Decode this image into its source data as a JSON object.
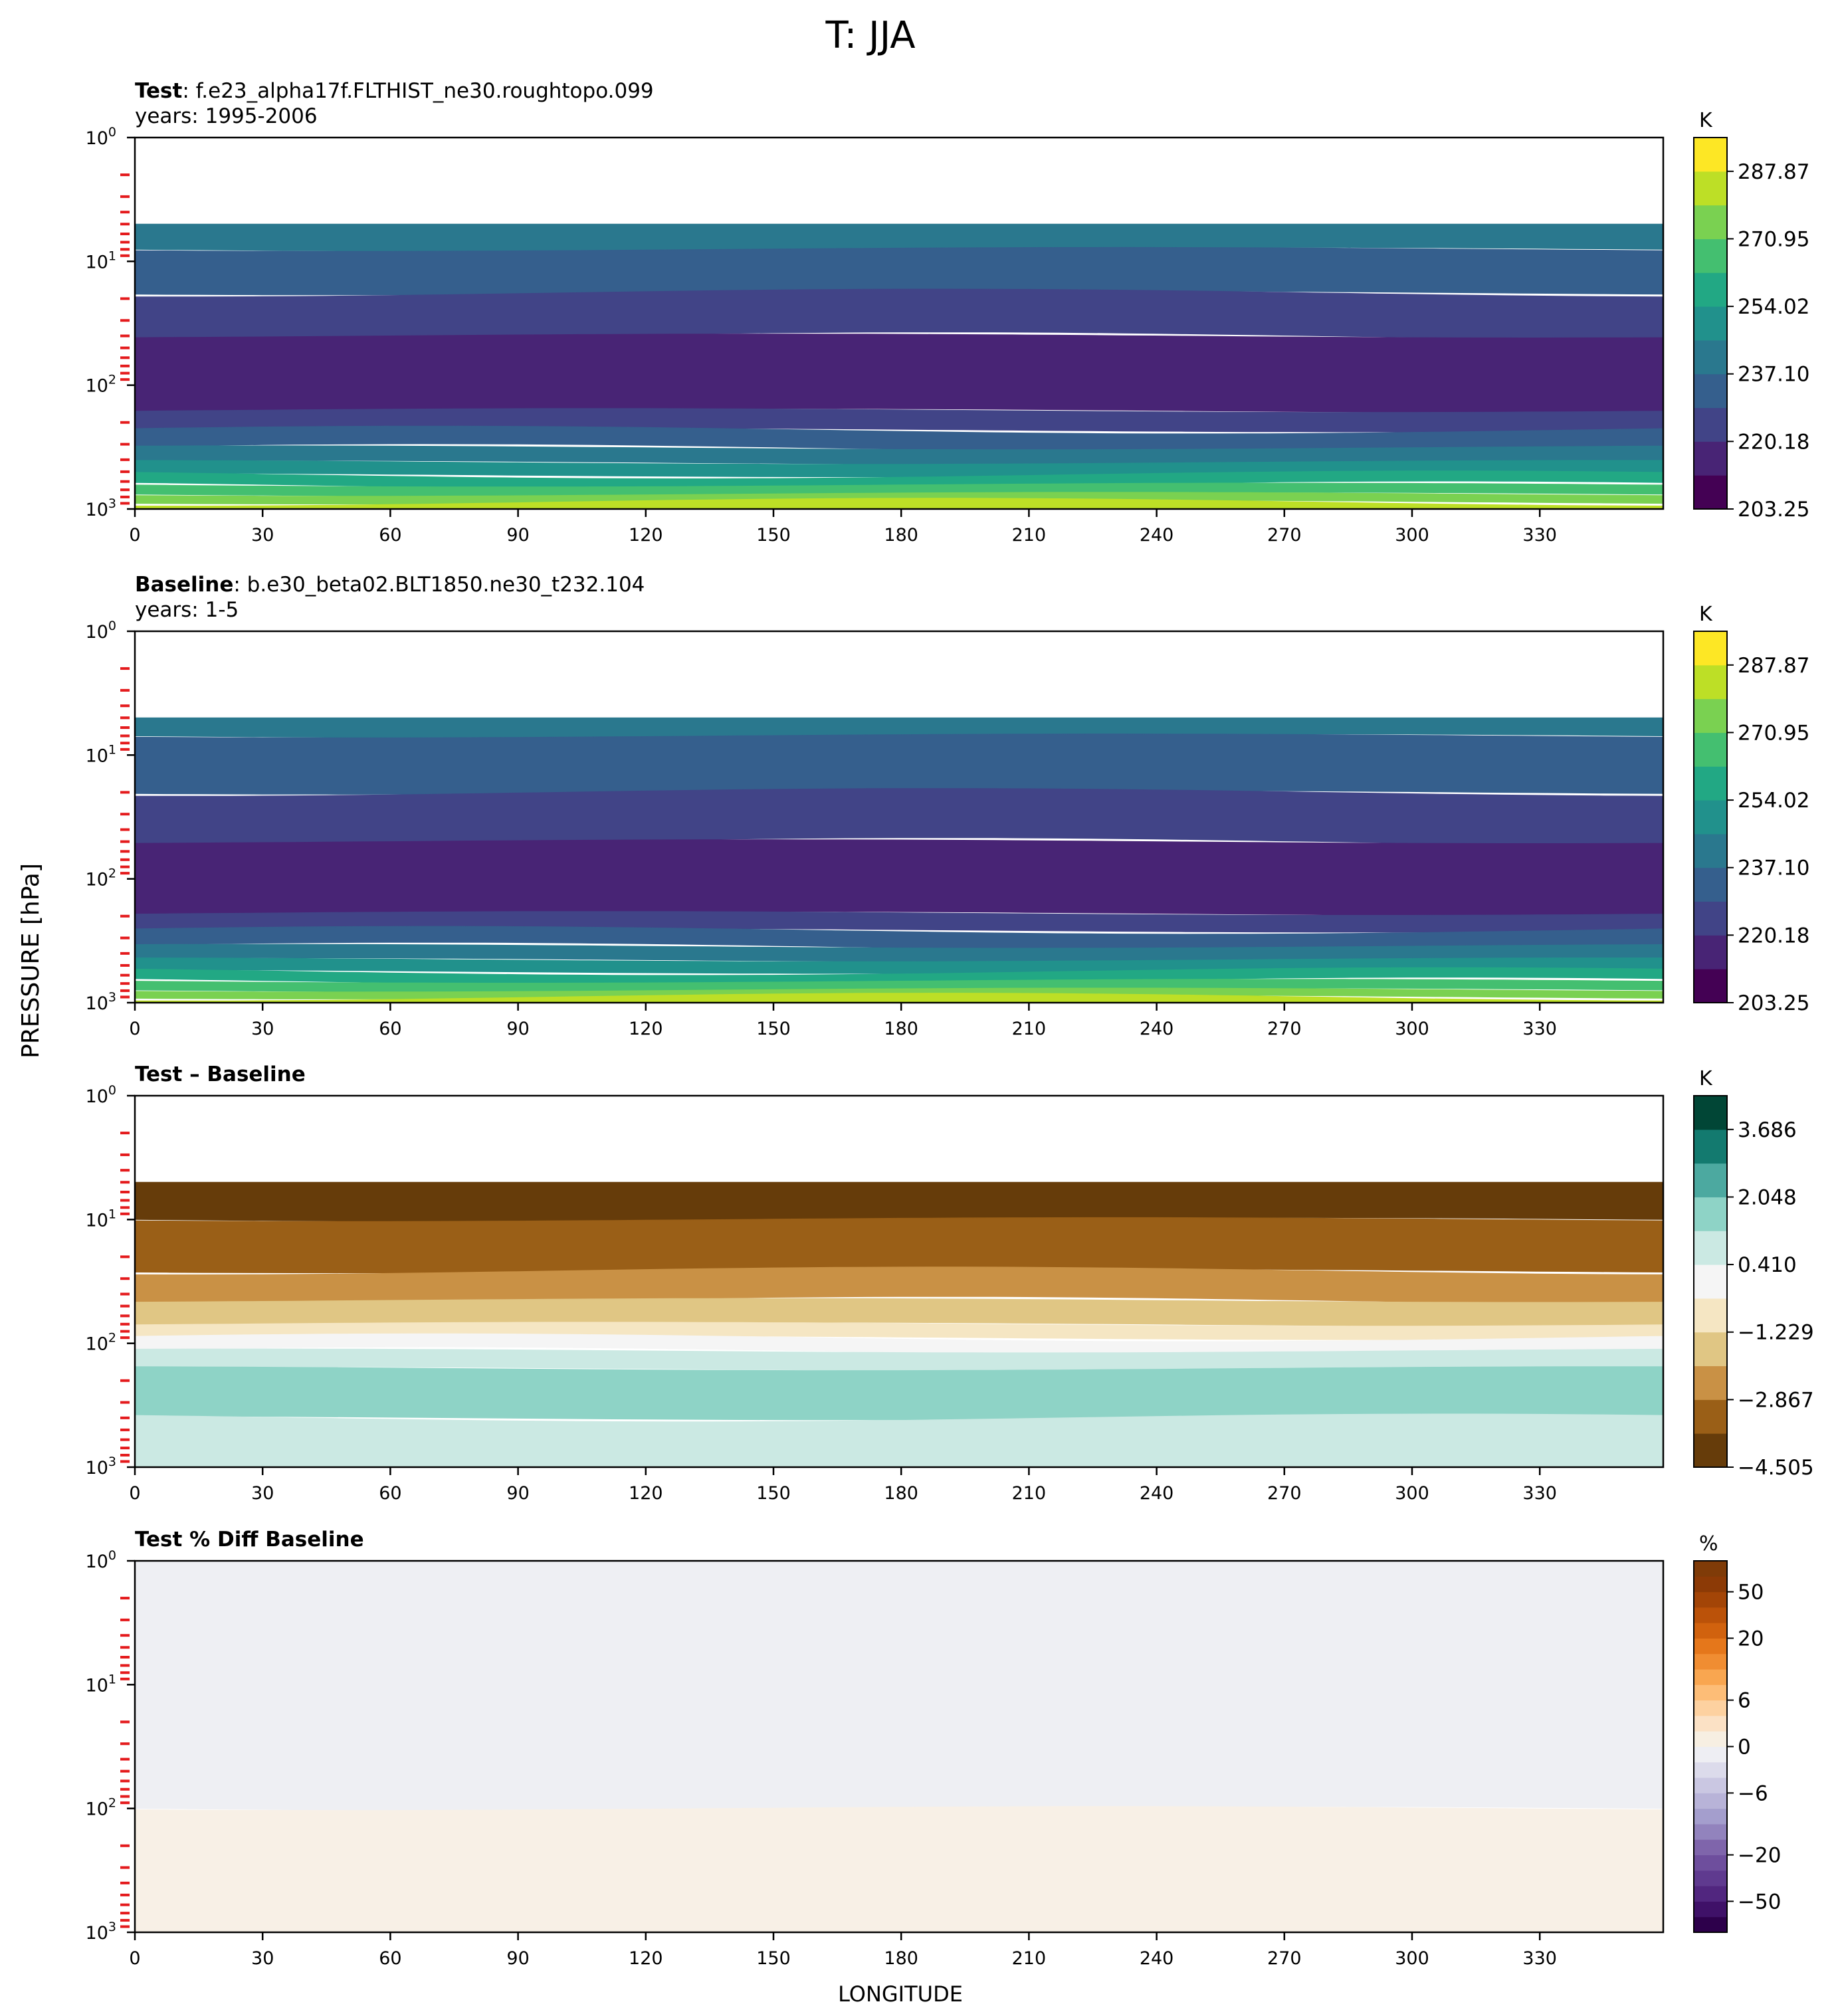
{
  "figure": {
    "title": "T: JJA",
    "ylabel": "PRESSURE [hPa]",
    "xlabel": "LONGITUDE"
  },
  "chart_data": [
    {
      "type": "heatmap",
      "id": "test",
      "title_bold": "Test",
      "title_rest": ": f.e23_alpha17f.FLTHIST_ne30.roughtopo.099",
      "subtitle": "years: 1995-2006",
      "unit": "K",
      "x_ticks": [
        0,
        30,
        60,
        90,
        120,
        150,
        180,
        210,
        240,
        270,
        300,
        330
      ],
      "xlim": [
        0,
        359
      ],
      "ylim": [
        1000,
        1
      ],
      "y_scale": "log",
      "y_ticks": [
        1,
        10,
        100,
        1000
      ],
      "y_tick_labels": [
        "10^0",
        "10^1",
        "10^2",
        "10^3"
      ],
      "data_top_hPa": 5,
      "levels": [
        203.25,
        211.72,
        220.18,
        228.64,
        237.1,
        245.56,
        254.02,
        262.49,
        270.95,
        279.41,
        287.87,
        296.33
      ],
      "colorbar_labels": [
        "287.87",
        "270.95",
        "254.02",
        "237.10",
        "220.18",
        "203.25"
      ],
      "colors": [
        "#440154",
        "#482475",
        "#414487",
        "#355f8d",
        "#2a788e",
        "#21918c",
        "#22a884",
        "#44bf70",
        "#7ad151",
        "#bddf26",
        "#fde725"
      ],
      "bands": [
        {
          "p_top": 5,
          "p_bot": 8,
          "color": "#2a788e"
        },
        {
          "p_top": 8,
          "p_bot": 18,
          "color": "#355f8d"
        },
        {
          "p_top": 18,
          "p_bot": 40,
          "color": "#414487"
        },
        {
          "p_top": 40,
          "p_bot": 160,
          "color": "#482475"
        },
        {
          "p_top": 160,
          "p_bot": 230,
          "color": "#414487"
        },
        {
          "p_top": 230,
          "p_bot": 320,
          "color": "#355f8d"
        },
        {
          "p_top": 320,
          "p_bot": 420,
          "color": "#2a788e"
        },
        {
          "p_top": 420,
          "p_bot": 530,
          "color": "#21918c"
        },
        {
          "p_top": 530,
          "p_bot": 640,
          "color": "#22a884"
        },
        {
          "p_top": 640,
          "p_bot": 760,
          "color": "#44bf70"
        },
        {
          "p_top": 760,
          "p_bot": 880,
          "color": "#7ad151"
        },
        {
          "p_top": 880,
          "p_bot": 1000,
          "color": "#bddf26"
        }
      ]
    },
    {
      "type": "heatmap",
      "id": "baseline",
      "title_bold": "Baseline",
      "title_rest": ": b.e30_beta02.BLT1850.ne30_t232.104",
      "subtitle": "years: 1-5",
      "unit": "K",
      "x_ticks": [
        0,
        30,
        60,
        90,
        120,
        150,
        180,
        210,
        240,
        270,
        300,
        330
      ],
      "xlim": [
        0,
        359
      ],
      "ylim": [
        1000,
        1
      ],
      "y_scale": "log",
      "y_ticks": [
        1,
        10,
        100,
        1000
      ],
      "y_tick_labels": [
        "10^0",
        "10^1",
        "10^2",
        "10^3"
      ],
      "data_top_hPa": 5,
      "levels": [
        203.25,
        211.72,
        220.18,
        228.64,
        237.1,
        245.56,
        254.02,
        262.49,
        270.95,
        279.41,
        287.87,
        296.33
      ],
      "colorbar_labels": [
        "287.87",
        "270.95",
        "254.02",
        "237.10",
        "220.18",
        "203.25"
      ],
      "colors": [
        "#440154",
        "#482475",
        "#414487",
        "#355f8d",
        "#2a788e",
        "#21918c",
        "#22a884",
        "#44bf70",
        "#7ad151",
        "#bddf26",
        "#fde725"
      ],
      "bands": [
        {
          "p_top": 5,
          "p_bot": 7,
          "color": "#2a788e"
        },
        {
          "p_top": 7,
          "p_bot": 20,
          "color": "#355f8d"
        },
        {
          "p_top": 20,
          "p_bot": 50,
          "color": "#414487"
        },
        {
          "p_top": 50,
          "p_bot": 190,
          "color": "#482475"
        },
        {
          "p_top": 190,
          "p_bot": 260,
          "color": "#414487"
        },
        {
          "p_top": 260,
          "p_bot": 350,
          "color": "#355f8d"
        },
        {
          "p_top": 350,
          "p_bot": 450,
          "color": "#2a788e"
        },
        {
          "p_top": 450,
          "p_bot": 560,
          "color": "#21918c"
        },
        {
          "p_top": 560,
          "p_bot": 670,
          "color": "#22a884"
        },
        {
          "p_top": 670,
          "p_bot": 790,
          "color": "#44bf70"
        },
        {
          "p_top": 790,
          "p_bot": 900,
          "color": "#7ad151"
        },
        {
          "p_top": 900,
          "p_bot": 1000,
          "color": "#bddf26"
        }
      ]
    },
    {
      "type": "heatmap",
      "id": "diff",
      "title_bold": "Test – Baseline",
      "title_rest": "",
      "subtitle": "",
      "unit": "K",
      "x_ticks": [
        0,
        30,
        60,
        90,
        120,
        150,
        180,
        210,
        240,
        270,
        300,
        330
      ],
      "xlim": [
        0,
        359
      ],
      "ylim": [
        1000,
        1
      ],
      "y_scale": "log",
      "y_ticks": [
        1,
        10,
        100,
        1000
      ],
      "y_tick_labels": [
        "10^0",
        "10^1",
        "10^2",
        "10^3"
      ],
      "data_top_hPa": 5,
      "levels": [
        -4.505,
        -3.686,
        -2.867,
        -2.048,
        -1.229,
        -0.41,
        0.41,
        1.229,
        2.048,
        2.867,
        3.686,
        4.505
      ],
      "colorbar_labels": [
        "3.686",
        "2.048",
        "0.410",
        "−1.229",
        "−2.867",
        "−4.505"
      ],
      "colors": [
        "#663c0a",
        "#9a5f17",
        "#c99145",
        "#e0c684",
        "#f5e6c3",
        "#f5f5f5",
        "#cbe9e3",
        "#8ed3c6",
        "#4ca9a0",
        "#137a6f",
        "#014636"
      ],
      "bands": [
        {
          "p_top": 5,
          "p_bot": 10,
          "color": "#663c0a"
        },
        {
          "p_top": 10,
          "p_bot": 26,
          "color": "#9a5f17"
        },
        {
          "p_top": 26,
          "p_bot": 45,
          "color": "#c99145"
        },
        {
          "p_top": 45,
          "p_bot": 70,
          "color": "#e0c684"
        },
        {
          "p_top": 70,
          "p_bot": 90,
          "color": "#f5e6c3"
        },
        {
          "p_top": 90,
          "p_bot": 115,
          "color": "#f5f5f5"
        },
        {
          "p_top": 115,
          "p_bot": 160,
          "color": "#cbe9e3"
        },
        {
          "p_top": 160,
          "p_bot": 400,
          "color": "#8ed3c6"
        },
        {
          "p_top": 400,
          "p_bot": 1000,
          "color": "#cbe9e3"
        }
      ]
    },
    {
      "type": "heatmap",
      "id": "pctdiff",
      "title_bold": "Test % Diff Baseline",
      "title_rest": "",
      "subtitle": "",
      "unit": "%",
      "x_ticks": [
        0,
        30,
        60,
        90,
        120,
        150,
        180,
        210,
        240,
        270,
        300,
        330
      ],
      "xlim": [
        0,
        359
      ],
      "ylim": [
        1000,
        1
      ],
      "y_scale": "log",
      "y_ticks": [
        1,
        10,
        100,
        1000
      ],
      "y_tick_labels": [
        "10^0",
        "10^1",
        "10^2",
        "10^3"
      ],
      "data_top_hPa": 1,
      "levels": [
        -100,
        -75,
        -50,
        -40,
        -30,
        -20,
        -15,
        -10,
        -8,
        -6,
        -4,
        -2,
        0,
        2,
        4,
        6,
        8,
        10,
        15,
        20,
        30,
        40,
        50,
        75,
        100
      ],
      "colorbar_labels": [
        "50",
        "20",
        "6",
        "0",
        "−6",
        "−20",
        "−50"
      ],
      "colorbar_label_values": [
        50,
        20,
        6,
        0,
        -6,
        -20,
        -50
      ],
      "colors": [
        "#2d004b",
        "#3f1168",
        "#51267f",
        "#5f3a8f",
        "#6e4e9d",
        "#7f65ab",
        "#9283bd",
        "#a49ecd",
        "#b8b3d8",
        "#cac7e2",
        "#dcdbeb",
        "#eeeef3",
        "#f7efe2",
        "#fbe1c5",
        "#fdd1a0",
        "#fdbd77",
        "#f9a650",
        "#f08d32",
        "#e5771b",
        "#d1620e",
        "#bb5209",
        "#a34507",
        "#8c3a06",
        "#7f3b08"
      ],
      "bands": [
        {
          "p_top": 1,
          "p_bot": 100,
          "color": "#eeeff3"
        },
        {
          "p_top": 100,
          "p_bot": 1000,
          "color": "#f8f0e6"
        }
      ]
    }
  ]
}
